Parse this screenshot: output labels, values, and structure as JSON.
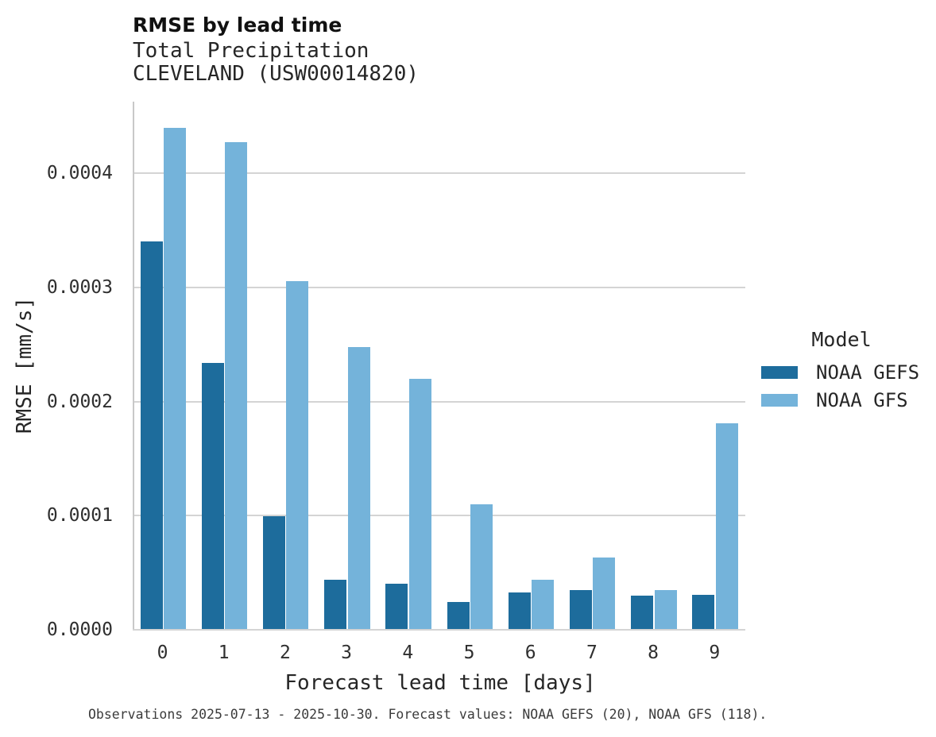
{
  "header": {
    "title": "RMSE by lead time",
    "subtitle_line1": "Total Precipitation",
    "subtitle_line2": "CLEVELAND (USW00014820)"
  },
  "axes": {
    "x_label": "Forecast lead time [days]",
    "y_label": "RMSE [mm/s]",
    "x_tick_labels": [
      "0",
      "1",
      "2",
      "3",
      "4",
      "5",
      "6",
      "7",
      "8",
      "9"
    ],
    "y_tick_labels": [
      "0.0000",
      "0.0001",
      "0.0002",
      "0.0003",
      "0.0004"
    ],
    "y_tick_values": [
      0.0,
      0.0001,
      0.0002,
      0.0003,
      0.0004
    ]
  },
  "legend": {
    "title": "Model",
    "entries": [
      {
        "label": "NOAA GEFS",
        "color": "#1d6c9c"
      },
      {
        "label": "NOAA GFS",
        "color": "#74b3da"
      }
    ]
  },
  "caption": {
    "text": "Observations 2025-07-13 - 2025-10-30. Forecast values: NOAA GEFS (20), NOAA GFS (118)."
  },
  "colors": {
    "gefs_bar": "#1d6c9c",
    "gfs_bar": "#74b3da",
    "gridline": "#d4d4d4",
    "axis_line": "#c8c8c8"
  },
  "chart_data": {
    "type": "bar",
    "title": "RMSE by lead time",
    "subtitle": "Total Precipitation — CLEVELAND (USW00014820)",
    "xlabel": "Forecast lead time [days]",
    "ylabel": "RMSE [mm/s]",
    "categories": [
      0,
      1,
      2,
      3,
      4,
      5,
      6,
      7,
      8,
      9
    ],
    "series": [
      {
        "name": "NOAA GEFS",
        "color": "#1d6c9c",
        "values": [
          0.00034,
          0.000233,
          9.9e-05,
          4.35e-05,
          4e-05,
          2.4e-05,
          3.2e-05,
          3.4e-05,
          2.9e-05,
          3e-05
        ]
      },
      {
        "name": "NOAA GFS",
        "color": "#74b3da",
        "values": [
          0.000439,
          0.000427,
          0.000305,
          0.000247,
          0.000219,
          0.000109,
          4.3e-05,
          6.25e-05,
          3.4e-05,
          0.00018
        ]
      }
    ],
    "ylim": [
      0,
      0.000463
    ],
    "y_gridlines": [
      0.0001,
      0.0002,
      0.0003,
      0.0004
    ],
    "grid": true,
    "legend_title": "Model",
    "legend_position": "right"
  }
}
